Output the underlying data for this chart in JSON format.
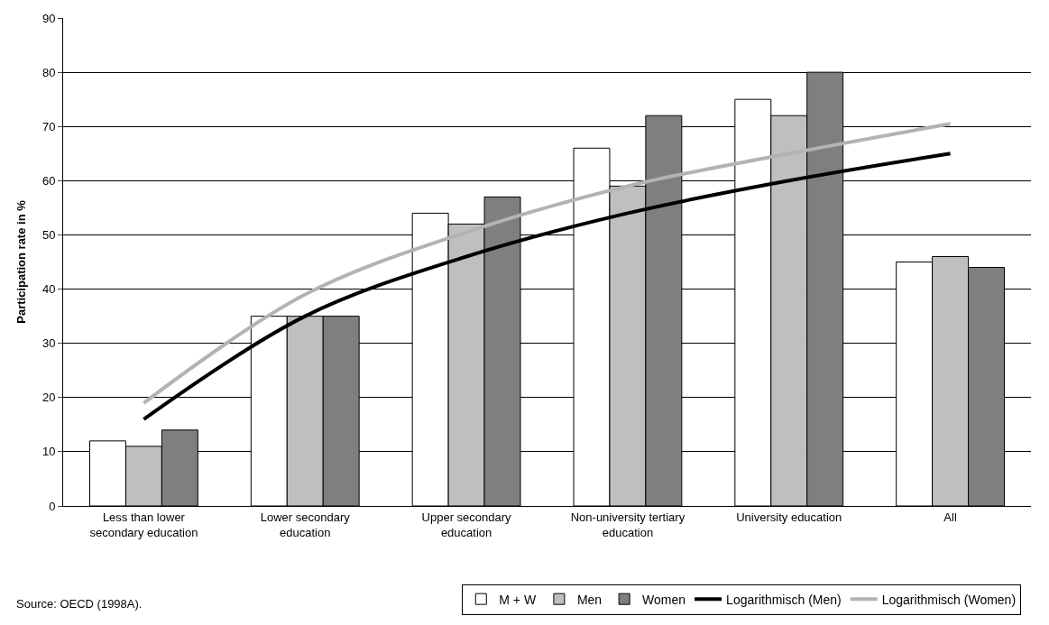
{
  "chart_data": {
    "type": "bar",
    "ylabel": "Participation rate in %",
    "categories": [
      "Less than lower secondary education",
      "Lower secondary education",
      "Upper secondary education",
      "Non-university tertiary education",
      "University education",
      "All"
    ],
    "series": [
      {
        "name": "M + W",
        "color": "#ffffff",
        "values": [
          12,
          35,
          54,
          66,
          75,
          45
        ]
      },
      {
        "name": "Men",
        "color": "#bfbfbf",
        "values": [
          11,
          35,
          52,
          59,
          72,
          46
        ]
      },
      {
        "name": "Women",
        "color": "#7f7f7f",
        "values": [
          14,
          35,
          57,
          72,
          80,
          44
        ]
      },
      {
        "name": "Logarithmisch (Men)",
        "type": "line",
        "color": "#000000",
        "values": [
          16,
          35,
          46,
          54,
          60,
          65
        ]
      },
      {
        "name": "Logarithmisch (Women)",
        "type": "line",
        "color": "#b3b3b3",
        "values": [
          19,
          39,
          50.5,
          59,
          65,
          70.5
        ]
      }
    ],
    "ylim": [
      0,
      90
    ],
    "yticks": [
      0,
      10,
      20,
      30,
      40,
      50,
      60,
      70,
      80,
      90
    ],
    "grid": "y",
    "legend": "bottom",
    "annotations": [
      "Source: OECD (1998A)."
    ]
  }
}
